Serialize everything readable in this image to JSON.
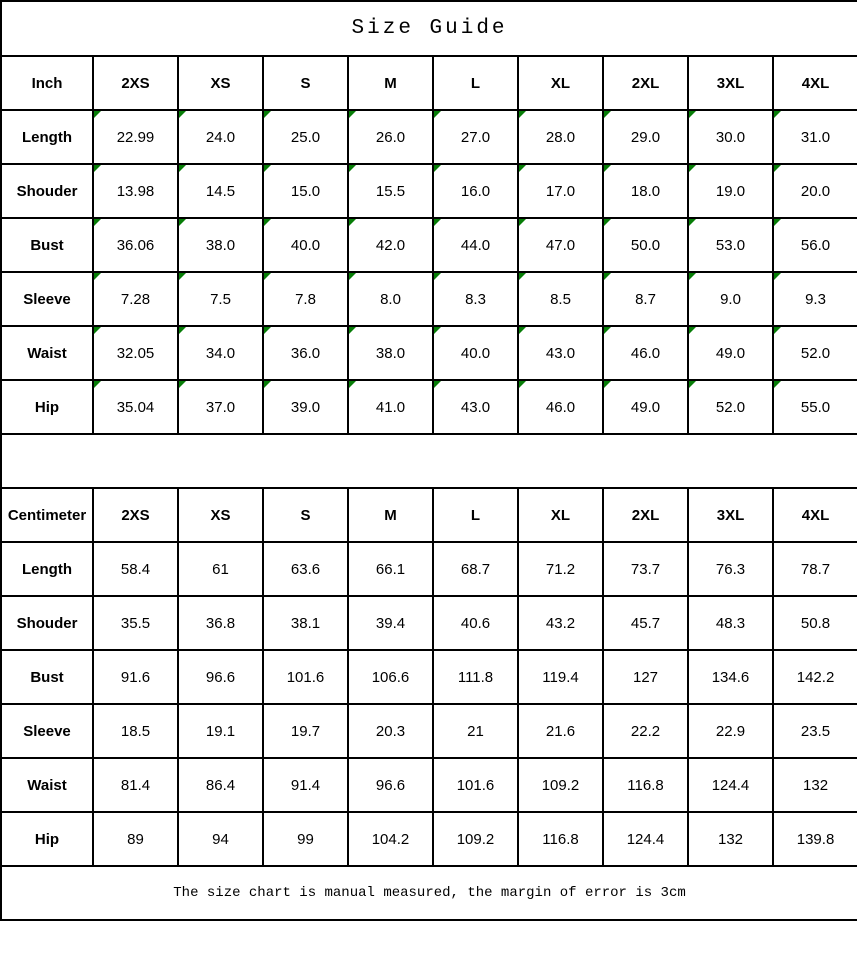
{
  "title": "Size Guide",
  "footer": "The size chart is manual measured, the margin of error is 3cm",
  "colors": {
    "border": "#000000",
    "background": "#ffffff",
    "text": "#000000",
    "flag_green": "#077d07"
  },
  "icons": {
    "cell_corner_flag": "text-format-flag-icon"
  },
  "inch": {
    "header": {
      "label": "Inch",
      "values": [
        "2XS",
        "XS",
        "S",
        "M",
        "L",
        "XL",
        "2XL",
        "3XL",
        "4XL"
      ]
    },
    "rows": [
      {
        "label": "Length",
        "values": [
          "22.99",
          "24.0",
          "25.0",
          "26.0",
          "27.0",
          "28.0",
          "29.0",
          "30.0",
          "31.0"
        ]
      },
      {
        "label": "Shouder",
        "values": [
          "13.98",
          "14.5",
          "15.0",
          "15.5",
          "16.0",
          "17.0",
          "18.0",
          "19.0",
          "20.0"
        ]
      },
      {
        "label": "Bust",
        "values": [
          "36.06",
          "38.0",
          "40.0",
          "42.0",
          "44.0",
          "47.0",
          "50.0",
          "53.0",
          "56.0"
        ]
      },
      {
        "label": "Sleeve",
        "values": [
          "7.28",
          "7.5",
          "7.8",
          "8.0",
          "8.3",
          "8.5",
          "8.7",
          "9.0",
          "9.3"
        ]
      },
      {
        "label": "Waist",
        "values": [
          "32.05",
          "34.0",
          "36.0",
          "38.0",
          "40.0",
          "43.0",
          "46.0",
          "49.0",
          "52.0"
        ]
      },
      {
        "label": "Hip",
        "values": [
          "35.04",
          "37.0",
          "39.0",
          "41.0",
          "43.0",
          "46.0",
          "49.0",
          "52.0",
          "55.0"
        ]
      }
    ]
  },
  "centimeter": {
    "header": {
      "label": "Centimeter",
      "values": [
        "2XS",
        "XS",
        "S",
        "M",
        "L",
        "XL",
        "2XL",
        "3XL",
        "4XL"
      ]
    },
    "rows": [
      {
        "label": "Length",
        "values": [
          "58.4",
          "61",
          "63.6",
          "66.1",
          "68.7",
          "71.2",
          "73.7",
          "76.3",
          "78.7"
        ]
      },
      {
        "label": "Shouder",
        "values": [
          "35.5",
          "36.8",
          "38.1",
          "39.4",
          "40.6",
          "43.2",
          "45.7",
          "48.3",
          "50.8"
        ]
      },
      {
        "label": "Bust",
        "values": [
          "91.6",
          "96.6",
          "101.6",
          "106.6",
          "111.8",
          "119.4",
          "127",
          "134.6",
          "142.2"
        ]
      },
      {
        "label": "Sleeve",
        "values": [
          "18.5",
          "19.1",
          "19.7",
          "20.3",
          "21",
          "21.6",
          "22.2",
          "22.9",
          "23.5"
        ]
      },
      {
        "label": "Waist",
        "values": [
          "81.4",
          "86.4",
          "91.4",
          "96.6",
          "101.6",
          "109.2",
          "116.8",
          "124.4",
          "132"
        ]
      },
      {
        "label": "Hip",
        "values": [
          "89",
          "94",
          "99",
          "104.2",
          "109.2",
          "116.8",
          "124.4",
          "132",
          "139.8"
        ]
      }
    ]
  }
}
